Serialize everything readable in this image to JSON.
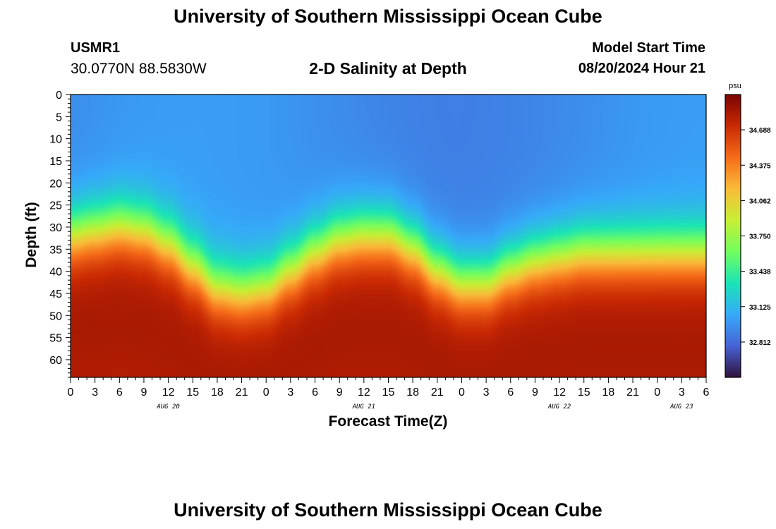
{
  "header": {
    "title": "University of Southern Mississippi Ocean Cube",
    "station_id": "USMR1",
    "station_coords": "30.0770N  88.5830W",
    "chart_title": "2-D Salinity at Depth",
    "run_label": "Model Start Time",
    "run_time": "08/20/2024 Hour 21"
  },
  "footer": {
    "title": "University of Southern Mississippi Ocean Cube"
  },
  "chart_data": {
    "type": "heatmap",
    "title": "2-D Salinity at Depth",
    "xlabel": "Forecast Time(Z)",
    "ylabel": "Depth (ft)",
    "x_tick_labels": [
      "0",
      "3",
      "6",
      "9",
      "12",
      "15",
      "18",
      "21",
      "0",
      "3",
      "6",
      "9",
      "12",
      "15",
      "18",
      "21",
      "0",
      "3",
      "6",
      "9",
      "12",
      "15",
      "18",
      "21",
      "0",
      "3",
      "6"
    ],
    "date_labels": [
      {
        "label": "AUG 20",
        "tick_index": 4
      },
      {
        "label": "AUG 21",
        "tick_index": 12
      },
      {
        "label": "AUG 22",
        "tick_index": 20
      },
      {
        "label": "AUG 23",
        "tick_index": 25
      }
    ],
    "y_ticks": [
      0,
      5,
      10,
      15,
      20,
      25,
      30,
      35,
      40,
      45,
      50,
      55,
      60
    ],
    "ylim": [
      0,
      64
    ],
    "colorbar": {
      "unit": "psu",
      "range": [
        32.5,
        35.0
      ],
      "ticks": [
        "34.688",
        "34.375",
        "34.062",
        "33.750",
        "33.438",
        "33.125",
        "32.812"
      ],
      "tick_values": [
        34.688,
        34.375,
        34.062,
        33.75,
        33.438,
        33.125,
        32.812
      ]
    },
    "colormap": [
      "#30123b",
      "#4662d7",
      "#36aaf9",
      "#1ae4b6",
      "#72fe5e",
      "#c7ef34",
      "#fabb39",
      "#f66b19",
      "#c92903",
      "#7a0403"
    ],
    "surface_salinity_psu": 32.95,
    "bottom_salinity_psu": 34.9,
    "thermocline_depth_ft": [
      [
        0,
        32
      ],
      [
        3,
        31
      ],
      [
        6,
        30
      ],
      [
        9,
        31
      ],
      [
        12,
        34
      ],
      [
        15,
        39
      ],
      [
        18,
        44
      ],
      [
        21,
        45
      ],
      [
        24,
        44
      ],
      [
        27,
        40
      ],
      [
        30,
        36
      ],
      [
        33,
        33
      ],
      [
        36,
        32
      ],
      [
        39,
        32
      ],
      [
        42,
        35
      ],
      [
        45,
        40
      ],
      [
        48,
        43
      ],
      [
        51,
        43
      ],
      [
        54,
        40
      ],
      [
        57,
        38
      ],
      [
        60,
        37
      ],
      [
        63,
        36
      ],
      [
        66,
        36
      ],
      [
        69,
        36
      ],
      [
        72,
        36
      ],
      [
        75,
        36
      ],
      [
        78,
        36
      ]
    ]
  }
}
